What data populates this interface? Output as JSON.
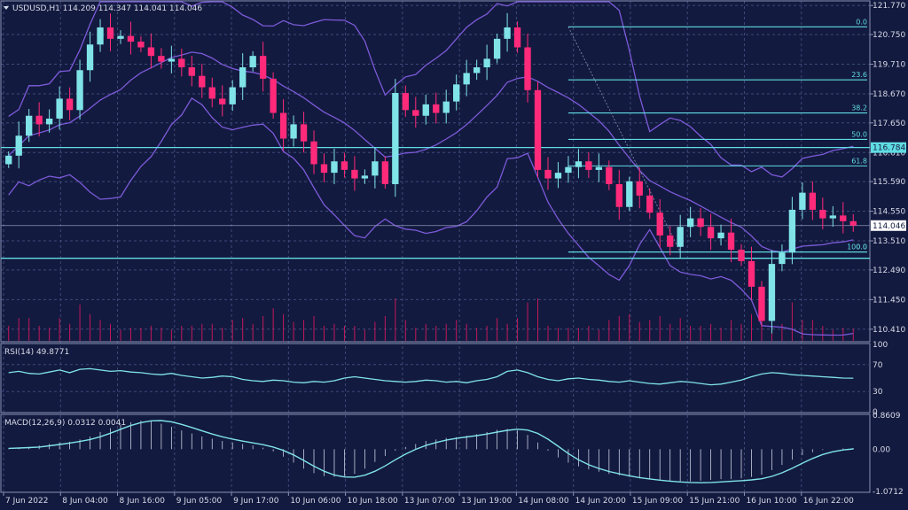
{
  "colors": {
    "background": "#131a3f",
    "grid": "#3c4a7a",
    "frame": "#8a93b6",
    "text": "#d7dbe8",
    "bull": "#7fe3e8",
    "bear": "#ff2a7a",
    "band": "#7c5ad9",
    "level": "#5fdde3",
    "volume": "#c2185b",
    "indicator": "#7fe3e8",
    "price_tag_bg": "#ffffff",
    "price_tag_fg": "#131a3f"
  },
  "symbol_header": "USDUSD,H1  114.209 114.347 114.041 114.046",
  "chart_data": [
    {
      "type": "candlestick",
      "symbol": "USDUSD",
      "timeframe": "H1",
      "ohlc_last": {
        "open": 114.209,
        "high": 114.347,
        "low": 114.041,
        "close": 114.046
      },
      "y_ticks": [
        "121.770",
        "120.750",
        "119.710",
        "118.670",
        "117.650",
        "116.610",
        "115.590",
        "114.550",
        "113.510",
        "112.490",
        "111.450",
        "110.410"
      ],
      "ylim": [
        110.0,
        121.9
      ],
      "current_price": "114.046",
      "horizontal_lines": [
        116.784,
        112.9
      ],
      "horizontal_line_tag": "116.784",
      "fibonacci": {
        "high": 121.02,
        "low": 113.12,
        "levels": [
          {
            "label": "0.0",
            "price": 121.02
          },
          {
            "label": "23.6",
            "price": 119.16
          },
          {
            "label": "38.2",
            "price": 118.0
          },
          {
            "label": "50.0",
            "price": 117.07
          },
          {
            "label": "61.8",
            "price": 116.14
          },
          {
            "label": "100.0",
            "price": 113.12
          },
          {
            "label": "0.0",
            "price": 113.12
          }
        ]
      },
      "x_labels": [
        "7 Jun 2022",
        "8 Jun 04:00",
        "8 Jun 16:00",
        "9 Jun 05:00",
        "9 Jun 17:00",
        "10 Jun 06:00",
        "10 Jun 18:00",
        "13 Jun 07:00",
        "13 Jun 19:00",
        "14 Jun 08:00",
        "14 Jun 20:00",
        "15 Jun 09:00",
        "15 Jun 21:00",
        "16 Jun 10:00",
        "16 Jun 22:00"
      ],
      "close_path": [
        116.5,
        117.2,
        117.9,
        117.6,
        117.8,
        118.5,
        118.1,
        119.5,
        120.4,
        121.0,
        120.6,
        120.7,
        120.5,
        120.3,
        120.0,
        119.8,
        119.9,
        119.6,
        119.3,
        118.9,
        118.5,
        118.3,
        118.9,
        119.6,
        120.0,
        119.2,
        118.0,
        117.1,
        117.6,
        117.0,
        116.2,
        115.9,
        116.3,
        116.0,
        115.7,
        115.8,
        116.3,
        115.5,
        118.7,
        118.1,
        117.9,
        118.3,
        118.0,
        118.4,
        119.0,
        119.4,
        119.6,
        119.9,
        120.6,
        121.0,
        120.3,
        118.8,
        116.0,
        115.7,
        115.9,
        116.1,
        116.3,
        116.0,
        116.1,
        115.5,
        114.7,
        115.6,
        115.1,
        114.5,
        113.7,
        113.3,
        114.0,
        114.3,
        114.0,
        113.6,
        113.8,
        113.2,
        112.8,
        111.9,
        110.7,
        112.7,
        113.1,
        114.6,
        115.2,
        114.6,
        114.3,
        114.4,
        114.2,
        114.046
      ],
      "rsi": {
        "label": "RSI(14) 49.8771",
        "value": 49.8771,
        "levels": [
          70,
          30
        ],
        "ticks": [
          "100",
          "70",
          "30",
          "0"
        ],
        "series": [
          58,
          60,
          57,
          56,
          59,
          62,
          58,
          63,
          64,
          62,
          60,
          61,
          59,
          58,
          56,
          55,
          57,
          54,
          52,
          50,
          51,
          53,
          52,
          48,
          46,
          45,
          47,
          46,
          44,
          43,
          45,
          44,
          46,
          50,
          52,
          50,
          48,
          46,
          45,
          44,
          45,
          47,
          46,
          44,
          45,
          43,
          46,
          48,
          52,
          60,
          62,
          58,
          52,
          48,
          46,
          49,
          50,
          48,
          47,
          45,
          44,
          46,
          44,
          42,
          41,
          43,
          45,
          44,
          42,
          40,
          41,
          44,
          47,
          52,
          56,
          58,
          57,
          55,
          54,
          53,
          52,
          51,
          50,
          49.88
        ]
      },
      "macd": {
        "label": "MACD(12,26,9) 0.0312 0.0041",
        "macd_value": 0.0312,
        "signal_value": 0.0041,
        "ticks": [
          "0.8609",
          "0.00",
          "-1.0712"
        ],
        "ylim": [
          -1.0712,
          0.8609
        ],
        "series": [
          0.02,
          0.04,
          0.06,
          0.1,
          0.14,
          0.18,
          0.2,
          0.26,
          0.34,
          0.46,
          0.56,
          0.66,
          0.72,
          0.76,
          0.74,
          0.68,
          0.6,
          0.5,
          0.42,
          0.34,
          0.28,
          0.22,
          0.18,
          0.14,
          0.1,
          0.04,
          -0.06,
          -0.2,
          -0.36,
          -0.52,
          -0.64,
          -0.72,
          -0.74,
          -0.72,
          -0.66,
          -0.52,
          -0.34,
          -0.18,
          -0.04,
          0.06,
          0.14,
          0.22,
          0.26,
          0.3,
          0.32,
          0.36,
          0.4,
          0.46,
          0.52,
          0.54,
          0.5,
          0.38,
          0.18,
          -0.04,
          -0.22,
          -0.36,
          -0.46,
          -0.54,
          -0.6,
          -0.66,
          -0.7,
          -0.74,
          -0.78,
          -0.8,
          -0.82,
          -0.84,
          -0.86,
          -0.86,
          -0.84,
          -0.82,
          -0.8,
          -0.8,
          -0.78,
          -0.74,
          -0.68,
          -0.56,
          -0.42,
          -0.28,
          -0.16,
          -0.08,
          -0.02,
          0.0,
          0.02,
          0.03
        ]
      }
    }
  ]
}
